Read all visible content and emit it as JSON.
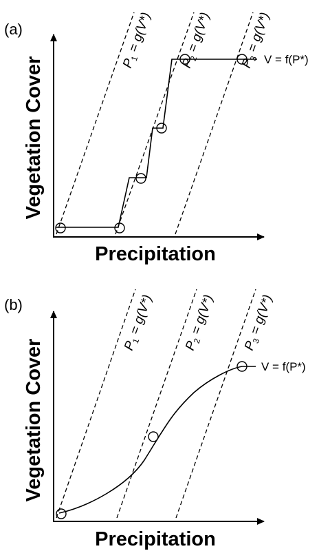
{
  "panels": [
    {
      "label": "(a)",
      "ylabel": "Vegetation Cover",
      "xlabel": "Precipitation",
      "curve_label": "V = f(P*)",
      "lines": [
        {
          "P": "P",
          "sub": "1",
          "rest": " = g(V*)"
        },
        {
          "P": "P",
          "sub": "2",
          "rest": " = g(V*)"
        },
        {
          "P": "P",
          "sub": "3",
          "rest": " = g(V*)"
        }
      ]
    },
    {
      "label": "(b)",
      "ylabel": "Vegetation Cover",
      "xlabel": "Precipitation",
      "curve_label": "V = f(P*)",
      "lines": [
        {
          "P": "P",
          "sub": "1",
          "rest": " = g(V*)"
        },
        {
          "P": "P",
          "sub": "2",
          "rest": " = g(V*)"
        },
        {
          "P": "P",
          "sub": "3",
          "rest": " = g(V*)"
        }
      ]
    }
  ]
}
